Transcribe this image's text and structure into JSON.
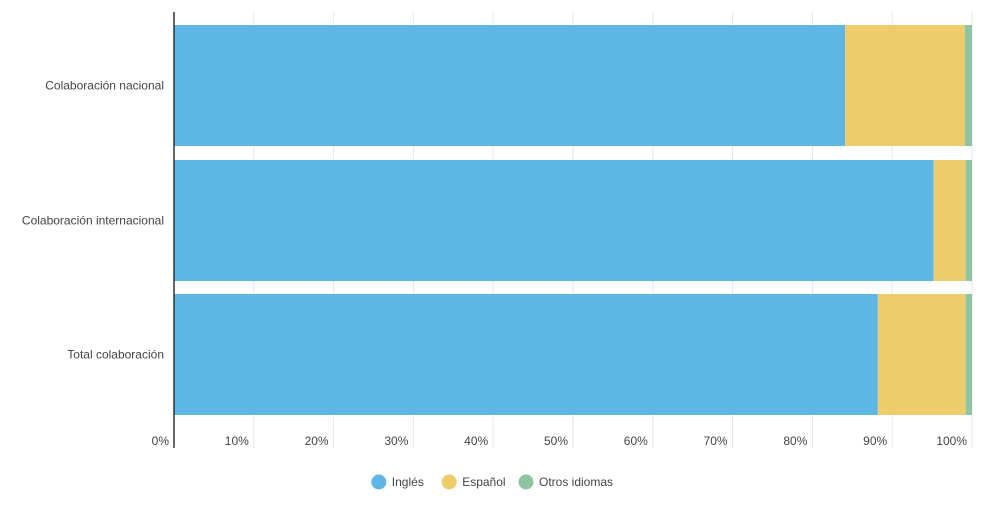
{
  "chart_data": {
    "type": "bar",
    "orientation": "horizontal",
    "stacked": true,
    "percent": true,
    "categories": [
      "Colaboración nacional",
      "Colaboración internacional",
      "Total colaboración"
    ],
    "series": [
      {
        "name": "Inglés",
        "color": "#5eb6e4",
        "values": [
          84.1,
          95.2,
          88.2
        ]
      },
      {
        "name": "Español",
        "color": "#eecb6b",
        "values": [
          15.0,
          4.0,
          11.0
        ]
      },
      {
        "name": "Otros idiomas",
        "color": "#8fc4a2",
        "values": [
          0.9,
          0.8,
          0.8
        ]
      }
    ],
    "xlim": [
      0,
      100
    ],
    "xticks": [
      "0%",
      "10%",
      "20%",
      "30%",
      "40%",
      "50%",
      "60%",
      "70%",
      "80%",
      "90%",
      "100%"
    ],
    "grid": true,
    "legend_position": "bottom-center"
  }
}
